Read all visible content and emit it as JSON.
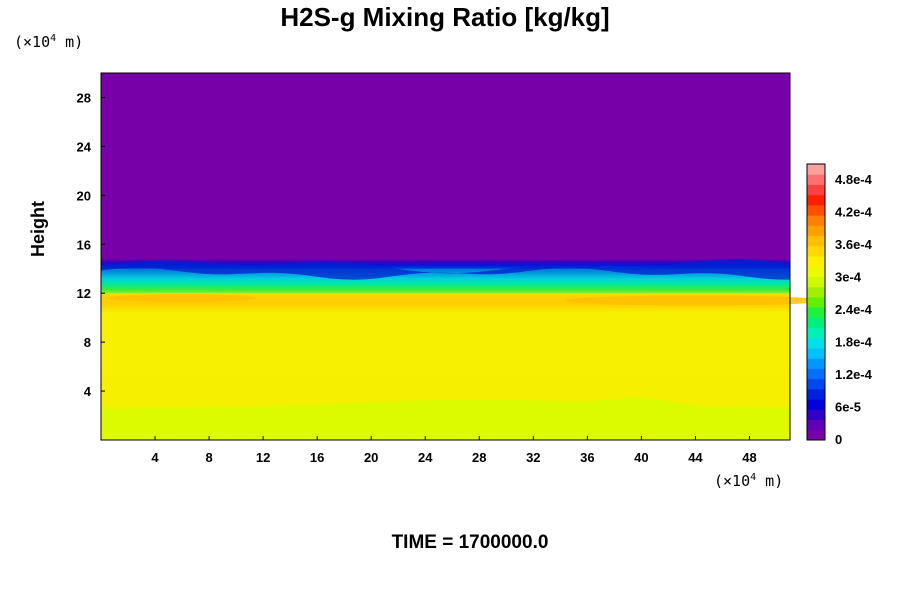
{
  "chart_data": {
    "type": "heatmap",
    "title": "H2S-g Mixing Ratio [kg/kg]",
    "ylabel": "Height",
    "xlabel": "",
    "x_unit": "(×10⁴ m)",
    "y_unit": "(×10⁴ m)",
    "x_ticks": [
      4,
      8,
      12,
      16,
      20,
      24,
      28,
      32,
      36,
      40,
      44,
      48
    ],
    "y_ticks": [
      4,
      8,
      12,
      16,
      20,
      24,
      28
    ],
    "xlim": [
      0,
      51
    ],
    "ylim": [
      0,
      30
    ],
    "colorbar": {
      "tick_labels": [
        "0",
        "6e-5",
        "1.2e-4",
        "1.8e-4",
        "2.4e-4",
        "3e-4",
        "3.6e-4",
        "4.2e-4",
        "4.8e-4"
      ],
      "tick_values": [
        0,
        6e-05,
        0.00012,
        0.00018,
        0.00024,
        0.0003,
        0.00036,
        0.00042,
        0.00048
      ],
      "range": [
        0,
        0.00051
      ]
    },
    "layers": [
      {
        "y_range": [
          0,
          2.5
        ],
        "value": 0.00033,
        "color": "#dcfa00"
      },
      {
        "y_range": [
          2.5,
          10.5
        ],
        "value": 0.00036,
        "color": "#f6f000"
      },
      {
        "y_range": [
          10.5,
          12
        ],
        "value": 0.00038,
        "color": "#ffd200"
      },
      {
        "y_range": [
          12,
          14
        ],
        "value": 0.00015,
        "color": "#00e0a0"
      },
      {
        "y_range": [
          14,
          30
        ],
        "value": 0,
        "color": "#7800a8"
      }
    ],
    "footer": "TIME = 1700000.0"
  }
}
